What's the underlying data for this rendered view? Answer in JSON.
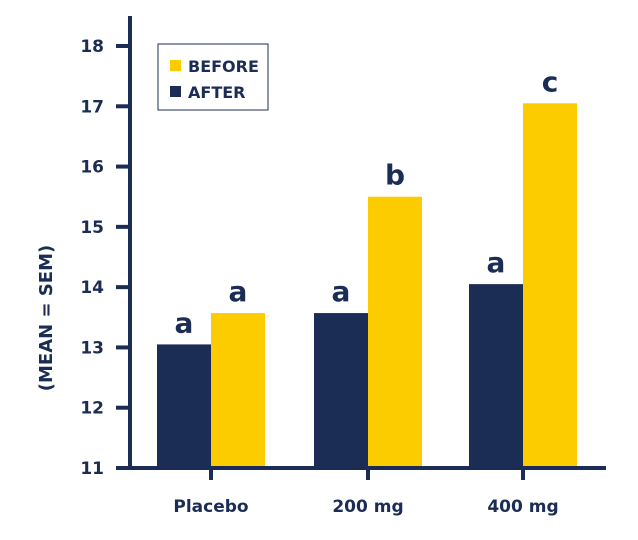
{
  "chart_data": {
    "type": "bar",
    "categories": [
      "Placebo",
      "200 mg",
      "400 mg"
    ],
    "series": [
      {
        "name": "AFTER",
        "color": "#1B2C55",
        "values": [
          13.05,
          13.57,
          14.05
        ],
        "letters": [
          "a",
          "a",
          "a"
        ]
      },
      {
        "name": "BEFORE",
        "color": "#FCCB00",
        "values": [
          13.57,
          15.5,
          17.05
        ],
        "letters": [
          "a",
          "b",
          "c"
        ]
      }
    ],
    "ylabel": "(MEAN = SEM)",
    "ylim": [
      11,
      18
    ],
    "yticks": [
      11,
      12,
      13,
      14,
      15,
      16,
      17,
      18
    ],
    "legend": {
      "placement": "top-left",
      "order": [
        "BEFORE",
        "AFTER"
      ]
    },
    "axis_color": "#1B2C55",
    "grid": false
  }
}
